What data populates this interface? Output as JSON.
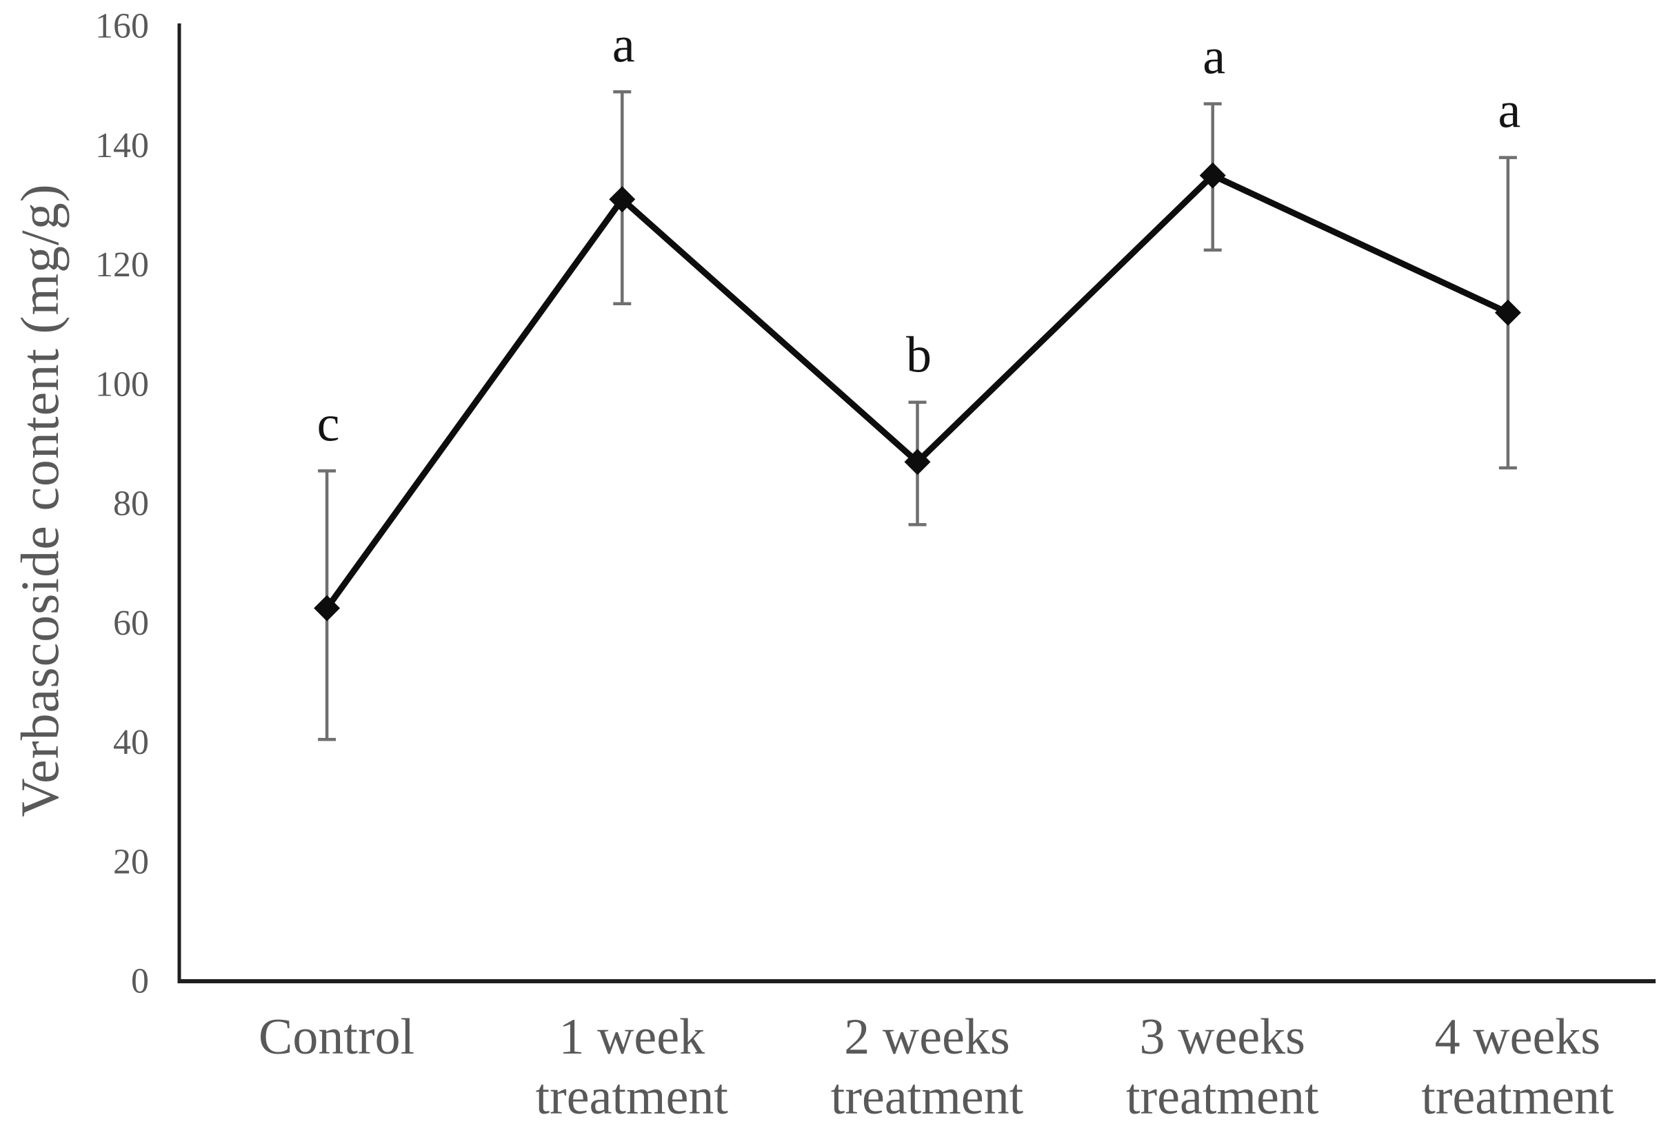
{
  "figure": {
    "background_color": "#ffffff"
  },
  "chart_data": {
    "type": "line",
    "title": "",
    "xlabel": "",
    "ylabel": "Verbascoside content (mg/g)",
    "categories": [
      "Control",
      "1 week\ntreatment",
      "2 weeks\ntreatment",
      "3 weeks\ntreatment",
      "4 weeks\ntreatment"
    ],
    "series": [
      {
        "name": "Verbascoside content",
        "values": [
          62.5,
          131,
          87,
          135,
          112
        ],
        "error_plus": [
          23,
          18,
          10,
          12,
          26
        ],
        "error_minus": [
          22,
          17.5,
          10.5,
          12.5,
          26
        ],
        "significance_letters": [
          "c",
          "a",
          "b",
          "a",
          "a"
        ]
      }
    ],
    "ylim": [
      0,
      160
    ],
    "yticks": [
      0,
      20,
      40,
      60,
      80,
      100,
      120,
      140,
      160
    ],
    "grid": false,
    "legend_position": "none",
    "marker_shape": "diamond",
    "colors": {
      "line": "#0d0d0d",
      "marker": "#0d0d0d",
      "error_bar": "#6f6f6f",
      "axis": "#1f1f1f",
      "tick_label": "#595959",
      "category_label": "#595959",
      "axis_title": "#595959",
      "significance_letter": "#141414"
    }
  }
}
